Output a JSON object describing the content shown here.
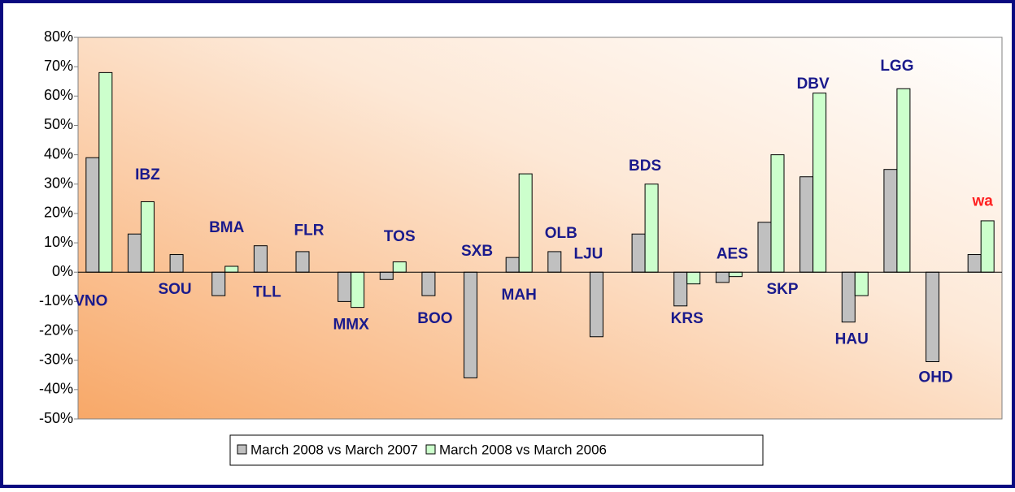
{
  "chart_data": {
    "type": "bar",
    "categories": [
      "VNO",
      "IBZ",
      "SOU",
      "BMA",
      "TLL",
      "FLR",
      "MMX",
      "TOS",
      "BOO",
      "SXB",
      "MAH",
      "OLB",
      "LJU",
      "BDS",
      "KRS",
      "AES",
      "SKP",
      "DBV",
      "HAU",
      "LGG",
      "OHD",
      "wa"
    ],
    "category_label_colors": [
      "#1a1a8c",
      "#1a1a8c",
      "#1a1a8c",
      "#1a1a8c",
      "#1a1a8c",
      "#1a1a8c",
      "#1a1a8c",
      "#1a1a8c",
      "#1a1a8c",
      "#1a1a8c",
      "#1a1a8c",
      "#1a1a8c",
      "#1a1a8c",
      "#1a1a8c",
      "#1a1a8c",
      "#1a1a8c",
      "#1a1a8c",
      "#1a1a8c",
      "#1a1a8c",
      "#1a1a8c",
      "#1a1a8c",
      "#ff2020"
    ],
    "series": [
      {
        "name": "March 2008 vs March 2007",
        "color": "#c0c0c0",
        "values": [
          39,
          13,
          6,
          -8,
          9,
          7,
          -10,
          -2.5,
          -8,
          -36,
          5,
          7,
          -22,
          13,
          -11.5,
          -3.5,
          17,
          32.5,
          -17,
          35,
          -30.5,
          6
        ]
      },
      {
        "name": "March 2008 vs March 2006",
        "color": "#ccffcc",
        "values": [
          68,
          24,
          null,
          2,
          null,
          null,
          -12,
          3.5,
          null,
          null,
          33.5,
          null,
          null,
          30,
          -4,
          -1.5,
          40,
          61,
          -8,
          62.5,
          null,
          17.5
        ]
      }
    ],
    "ylim": [
      -50,
      80
    ],
    "yticks": [
      {
        "value": -50,
        "label": "-50%"
      },
      {
        "value": -40,
        "label": "-40%"
      },
      {
        "value": -30,
        "label": "-30%"
      },
      {
        "value": -20,
        "label": "-20%"
      },
      {
        "value": -10,
        "label": "-10%"
      },
      {
        "value": 0,
        "label": "0%"
      },
      {
        "value": 10,
        "label": "10%"
      },
      {
        "value": 20,
        "label": "20%"
      },
      {
        "value": 30,
        "label": "30%"
      },
      {
        "value": 40,
        "label": "40%"
      },
      {
        "value": 50,
        "label": "50%"
      },
      {
        "value": 60,
        "label": "60%"
      },
      {
        "value": 70,
        "label": "70%"
      },
      {
        "value": 80,
        "label": "80%"
      }
    ],
    "legend": "bottom"
  }
}
